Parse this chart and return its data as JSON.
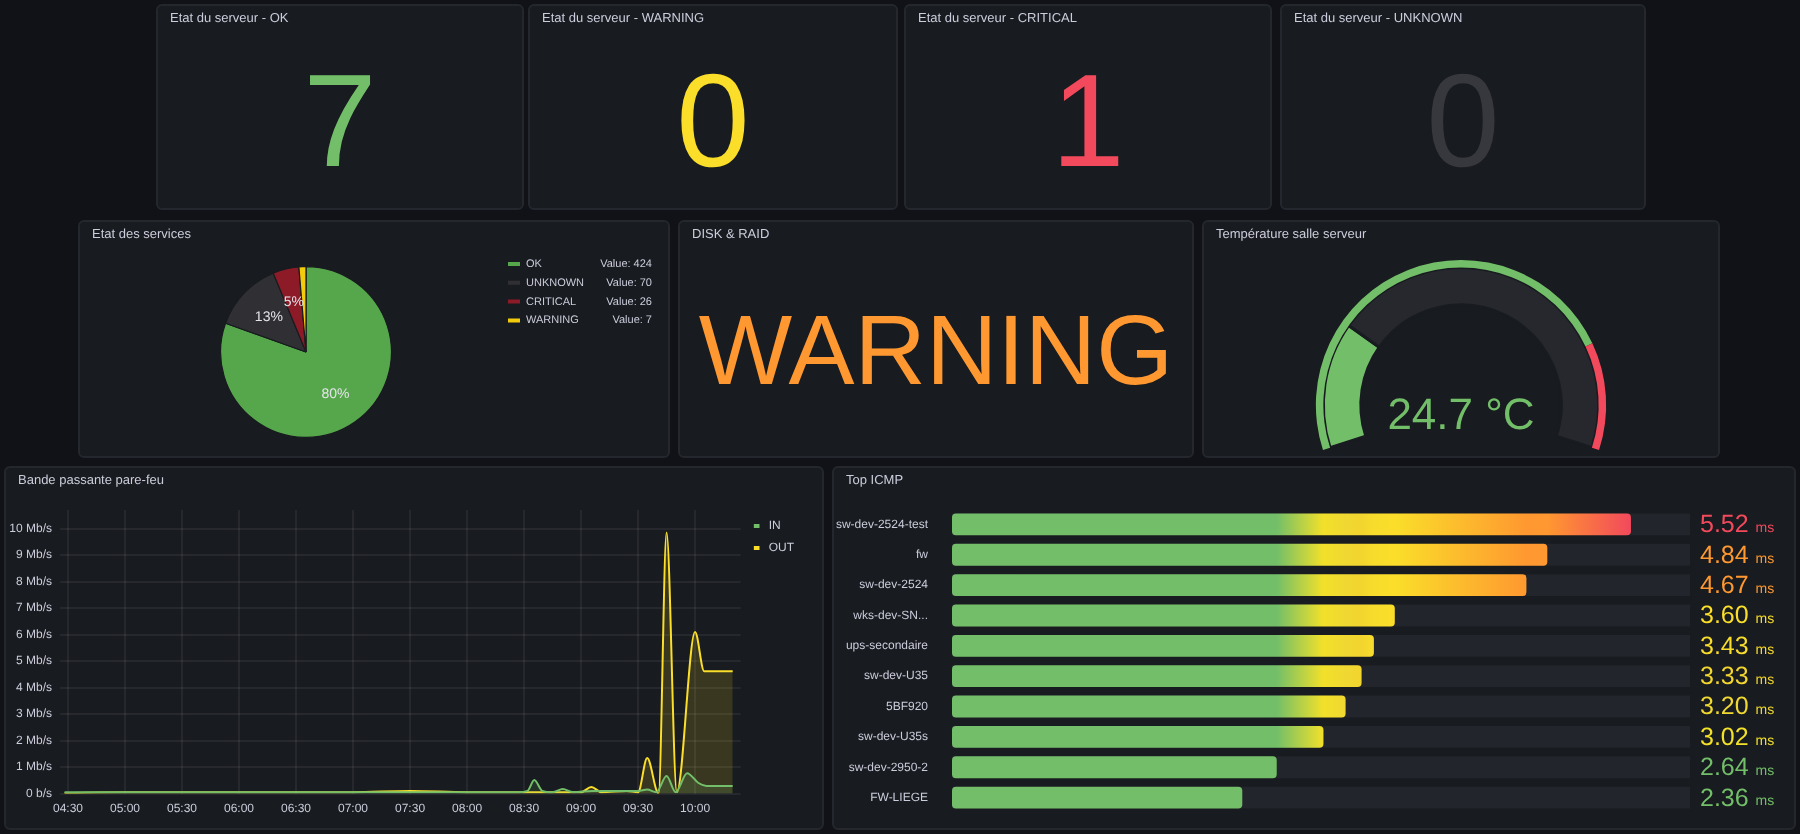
{
  "chart_data": [
    {
      "type": "other",
      "title": "Etat du serveur - OK",
      "annotations": [
        "7"
      ],
      "color": "#73bf69"
    },
    {
      "type": "other",
      "title": "Etat du serveur - WARNING",
      "annotations": [
        "0"
      ],
      "color": "#fade2a"
    },
    {
      "type": "other",
      "title": "Etat du serveur - CRITICAL",
      "annotations": [
        "1"
      ],
      "color": "#f2495c"
    },
    {
      "type": "other",
      "title": "Etat du serveur - UNKNOWN",
      "annotations": [
        "0"
      ],
      "color": "#37383d"
    },
    {
      "type": "pie",
      "title": "Etat des services",
      "categories": [
        "OK",
        "UNKNOWN",
        "CRITICAL",
        "WARNING"
      ],
      "values": [
        424,
        70,
        26,
        7
      ],
      "colors": [
        "#56a64b",
        "#303034",
        "#8c1b27",
        "#f2cc0c"
      ],
      "value_labels": [
        "Value: 424",
        "Value: 70",
        "Value: 26",
        "Value: 7"
      ],
      "annotations": [
        {
          "text": "80%",
          "x": "OK"
        },
        {
          "text": "13%",
          "x": "UNKNOWN"
        },
        {
          "text": "5%",
          "x": "CRITICAL"
        }
      ],
      "legend": "top right"
    },
    {
      "type": "other",
      "title": "DISK & RAID",
      "annotations": [
        "WARNING"
      ],
      "color": "#ff9830"
    },
    {
      "type": "donut",
      "title": "Température salle serveur",
      "categories": [
        null,
        null
      ],
      "series": [
        {
          "values": [
            24.7,
            75.3
          ],
          "colors": [
            "#73bf69",
            "#26282e"
          ]
        },
        {
          "values": [
            80,
            20
          ],
          "colors": [
            "#73bf69",
            "#f2495c"
          ]
        }
      ],
      "annotations": [
        "24.7 °C"
      ]
    },
    {
      "type": "area",
      "title": "Bande passante pare-feu",
      "series": [
        {
          "name": "IN",
          "color": "#73bf69",
          "x": [
            4.47,
            5,
            5.5,
            6,
            6.5,
            7,
            7.5,
            8,
            8.45,
            8.53,
            8.59,
            8.66,
            8.75,
            8.84,
            8.93,
            9.1,
            9.3,
            9.5,
            9.58,
            9.66,
            9.75,
            9.83,
            9.93,
            10.03,
            10.1,
            10.33
          ],
          "values": [
            0.05,
            0.05,
            0.05,
            0.05,
            0.05,
            0.05,
            0.05,
            0.05,
            0.05,
            0.1,
            0.51,
            0.1,
            0.05,
            0.17,
            0.05,
            0.1,
            0.1,
            0.1,
            0.15,
            0.05,
            0.66,
            0.05,
            0.77,
            0.4,
            0.29,
            0.29
          ]
        },
        {
          "name": "OUT",
          "color": "#fade2a",
          "x": [
            4.47,
            5,
            5.5,
            6,
            6.5,
            7,
            7.5,
            8,
            8.5,
            8.8,
            9.0,
            9.09,
            9.18,
            9.4,
            9.5,
            9.58,
            9.68,
            9.75,
            9.84,
            10.0,
            10.08,
            10.33
          ],
          "values": [
            0.02,
            0.05,
            0.05,
            0.05,
            0.05,
            0.05,
            0.1,
            0.05,
            0.05,
            0.05,
            0.05,
            0.25,
            0.05,
            0.1,
            0.05,
            1.34,
            0,
            9.85,
            0.05,
            6.1,
            4.62,
            4.62
          ]
        }
      ],
      "xlim": [
        4.43,
        10.4
      ],
      "xticks": [
        {
          "value": 4.5,
          "label": "04:30"
        },
        {
          "value": 5,
          "label": "05:00"
        },
        {
          "value": 5.5,
          "label": "05:30"
        },
        {
          "value": 6,
          "label": "06:00"
        },
        {
          "value": 6.5,
          "label": "06:30"
        },
        {
          "value": 7,
          "label": "07:00"
        },
        {
          "value": 7.5,
          "label": "07:30"
        },
        {
          "value": 8,
          "label": "08:00"
        },
        {
          "value": 8.5,
          "label": "08:30"
        },
        {
          "value": 9,
          "label": "09:00"
        },
        {
          "value": 9.5,
          "label": "09:30"
        },
        {
          "value": 10,
          "label": "10:00"
        }
      ],
      "ylim": [
        0,
        10.7
      ],
      "yticks": [
        {
          "value": 0,
          "label": "0 b/s"
        },
        {
          "value": 1,
          "label": "1 Mb/s"
        },
        {
          "value": 2,
          "label": "2 Mb/s"
        },
        {
          "value": 3,
          "label": "3 Mb/s"
        },
        {
          "value": 4,
          "label": "4 Mb/s"
        },
        {
          "value": 5,
          "label": "5 Mb/s"
        },
        {
          "value": 6,
          "label": "6 Mb/s"
        },
        {
          "value": 7,
          "label": "7 Mb/s"
        },
        {
          "value": 8,
          "label": "8 Mb/s"
        },
        {
          "value": 9,
          "label": "9 Mb/s"
        },
        {
          "value": 10,
          "label": "10 Mb/s"
        }
      ],
      "grid": true,
      "legend": "top right"
    },
    {
      "type": "bar",
      "orientation": "horizontal",
      "title": "Top ICMP",
      "categories": [
        "sw-dev-2524-test",
        "fw",
        "sw-dev-2524",
        "wks-dev-SN...",
        "ups-secondaire",
        "sw-dev-U35",
        "5BF920",
        "sw-dev-U35s",
        "sw-dev-2950-2",
        "FW-LIEGE"
      ],
      "values": [
        5.52,
        4.84,
        4.67,
        3.6,
        3.43,
        3.33,
        3.2,
        3.02,
        2.64,
        2.36
      ],
      "colors": [
        "#f2495c",
        "#ff9830",
        "#ff9830",
        "#fade2a",
        "#f8dc2c",
        "#f2d52e",
        "#f0d832",
        "#f2e02a",
        "#73bf69",
        "#73bf69"
      ],
      "value_labels": [
        "5.52 ms",
        "4.84 ms",
        "4.67 ms",
        "3.60 ms",
        "3.43 ms",
        "3.33 ms",
        "3.20 ms",
        "3.02 ms",
        "2.64 ms",
        "2.36 ms"
      ]
    }
  ]
}
